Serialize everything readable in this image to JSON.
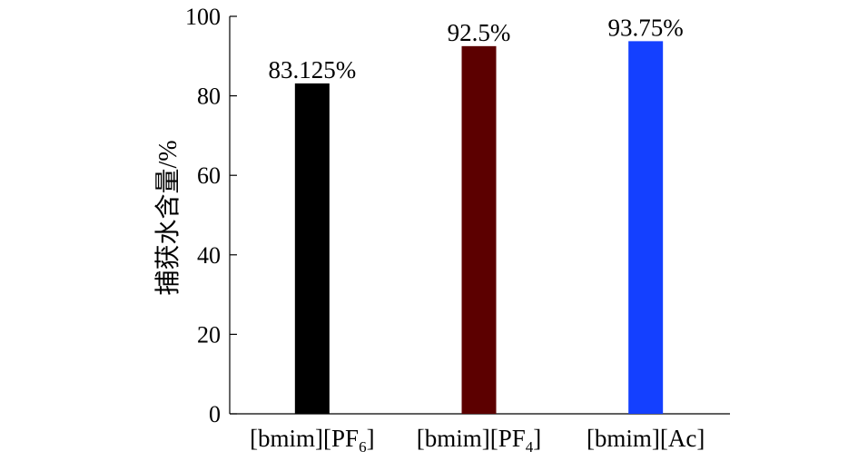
{
  "chart_data": {
    "type": "bar",
    "title": "",
    "xlabel": "",
    "ylabel": "捕获水含量/%",
    "ylim": [
      0,
      100
    ],
    "yticks": [
      0,
      20,
      40,
      60,
      80,
      100
    ],
    "grid": false,
    "categories": [
      {
        "base": "[bmim][PF",
        "sub": "6",
        "tail": "]"
      },
      {
        "base": "[bmim][PF",
        "sub": "4",
        "tail": "]"
      },
      {
        "base": "[bmim][Ac]",
        "sub": "",
        "tail": ""
      }
    ],
    "values": [
      83.125,
      92.5,
      93.75
    ],
    "data_labels": [
      "83.125%",
      "92.5%",
      "93.75%"
    ],
    "colors": [
      "#000000",
      "#5c0000",
      "#1440ff"
    ]
  }
}
